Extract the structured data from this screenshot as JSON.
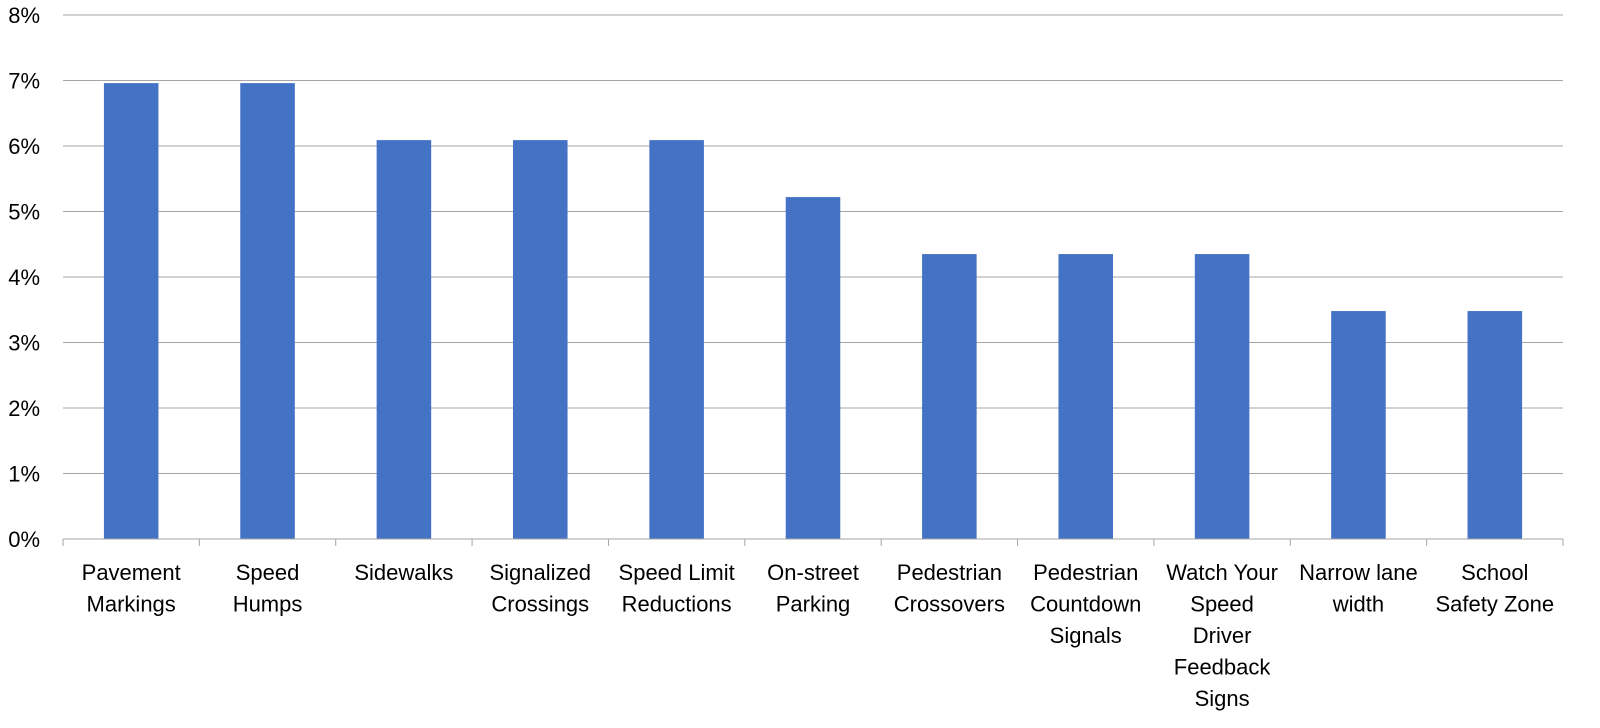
{
  "chart_data": {
    "type": "bar",
    "categories": [
      [
        "Pavement",
        "Markings"
      ],
      [
        "Speed",
        "Humps"
      ],
      [
        "Sidewalks"
      ],
      [
        "Signalized",
        "Crossings"
      ],
      [
        "Speed Limit",
        "Reductions"
      ],
      [
        "On-street",
        "Parking"
      ],
      [
        "Pedestrian",
        "Crossovers"
      ],
      [
        "Pedestrian",
        "Countdown",
        "Signals"
      ],
      [
        "Watch Your",
        "Speed",
        "Driver",
        "Feedback",
        "Signs"
      ],
      [
        "Narrow lane",
        "width"
      ],
      [
        "School",
        "Safety Zone"
      ]
    ],
    "values": [
      6.96,
      6.96,
      6.09,
      6.09,
      6.09,
      5.22,
      4.35,
      4.35,
      4.35,
      3.48,
      3.48
    ],
    "ylim": [
      0,
      8
    ],
    "yticks": [
      "0%",
      "1%",
      "2%",
      "3%",
      "4%",
      "5%",
      "6%",
      "7%",
      "8%"
    ],
    "grid": true,
    "bar_color": "#4472C4"
  }
}
